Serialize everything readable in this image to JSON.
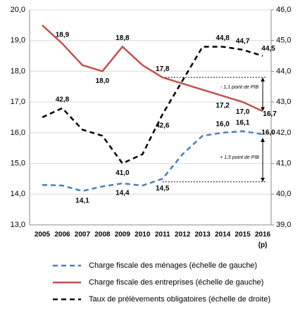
{
  "chart_data": {
    "type": "line",
    "categories": [
      "2005",
      "2006",
      "2007",
      "2008",
      "2009",
      "2010",
      "2011",
      "2012",
      "2013",
      "2014",
      "2015",
      "2016"
    ],
    "x_note": "(p)",
    "ylim": [
      13,
      20
    ],
    "yticks": [
      {
        "value": 13,
        "label": "13,0"
      },
      {
        "value": 14,
        "label": "14,0"
      },
      {
        "value": 15,
        "label": "15,0"
      },
      {
        "value": 16,
        "label": "16,0"
      },
      {
        "value": 17,
        "label": "17,0"
      },
      {
        "value": 18,
        "label": "18,0"
      },
      {
        "value": 19,
        "label": "19,0"
      },
      {
        "value": 20,
        "label": "20,0"
      }
    ],
    "y2lim": [
      39,
      46
    ],
    "y2ticks": [
      {
        "value": 39,
        "label": "39,0"
      },
      {
        "value": 40,
        "label": "40,0"
      },
      {
        "value": 41,
        "label": "41,0"
      },
      {
        "value": 42,
        "label": "42,0"
      },
      {
        "value": 43,
        "label": "43,0"
      },
      {
        "value": 44,
        "label": "44,0"
      },
      {
        "value": 45,
        "label": "45,0"
      },
      {
        "value": 46,
        "label": "46,0"
      }
    ],
    "grid": true,
    "series": [
      {
        "name": "Charge fiscale des ménages (échelle de gauche)",
        "color": "#4a7ebb",
        "dash": "dashed",
        "values": [
          14.3,
          14.28,
          14.1,
          14.25,
          14.35,
          14.28,
          14.5,
          15.3,
          15.9,
          16.0,
          16.05,
          15.95
        ],
        "value_labels": [
          null,
          null,
          "14,1",
          null,
          "14,4",
          null,
          "14,5",
          null,
          null,
          "16,0",
          "16,1",
          "16,0"
        ]
      },
      {
        "name": "Charge fiscale des entreprises (échelle de gauche)",
        "color": "#c0504d",
        "dash": "solid",
        "values": [
          19.5,
          18.9,
          18.2,
          18.0,
          18.8,
          18.2,
          17.8,
          17.6,
          17.4,
          17.2,
          17.0,
          16.7
        ],
        "value_labels": [
          null,
          "18,9",
          null,
          "18,0",
          "18,8",
          null,
          "17,8",
          null,
          null,
          "17,2",
          "17,0",
          "16,7"
        ]
      },
      {
        "name": "Taux de prélèvements obligatoires (échelle de droite)",
        "color": "#000000",
        "dash": "dashed",
        "axis": "y2",
        "values": [
          42.5,
          42.8,
          42.1,
          41.9,
          41.0,
          41.3,
          42.6,
          43.7,
          44.8,
          44.8,
          44.7,
          44.5
        ],
        "value_labels": [
          null,
          "42,8",
          null,
          null,
          "41,0",
          null,
          "42,6",
          null,
          null,
          "44,8",
          "44,7",
          "44,5"
        ]
      }
    ],
    "annotations": [
      "- 1,1 point de PIB",
      "+ 1,5 point de PIB"
    ]
  }
}
